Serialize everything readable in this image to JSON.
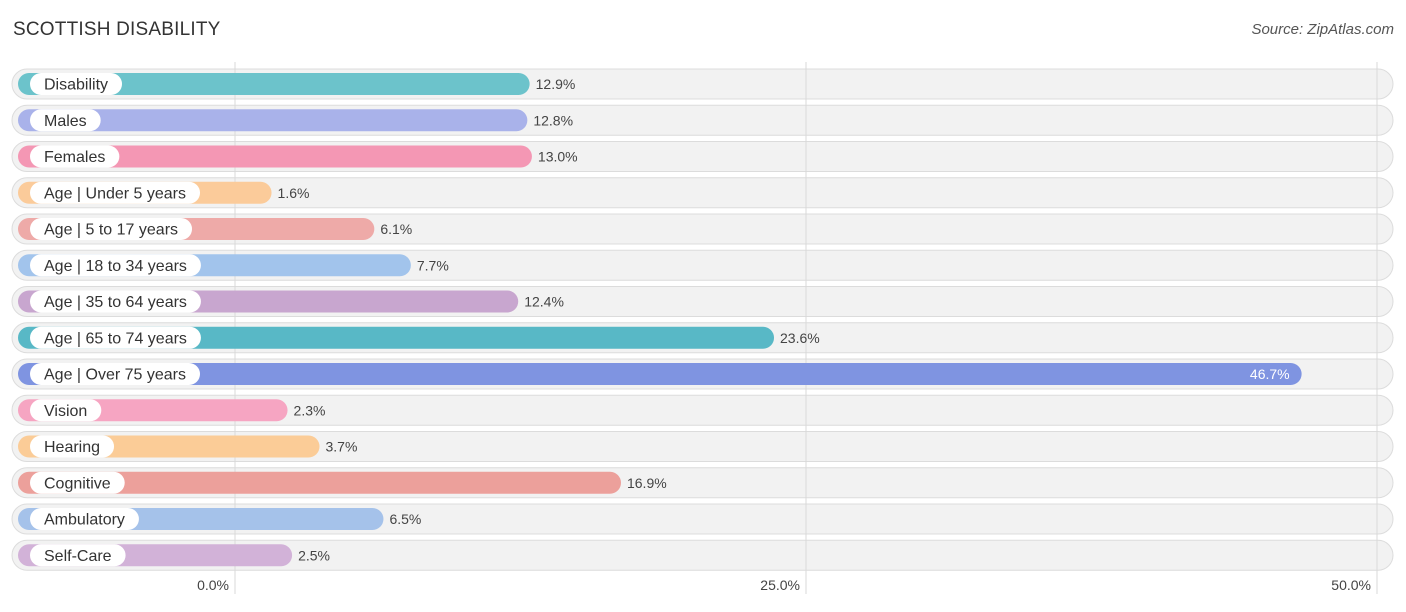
{
  "title": "SCOTTISH DISABILITY",
  "source": "Source: ZipAtlas.com",
  "chart_data": {
    "type": "bar",
    "orientation": "horizontal",
    "categories": [
      "Disability",
      "Males",
      "Females",
      "Age | Under 5 years",
      "Age | 5 to 17 years",
      "Age | 18 to 34 years",
      "Age | 35 to 64 years",
      "Age | 65 to 74 years",
      "Age | Over 75 years",
      "Vision",
      "Hearing",
      "Cognitive",
      "Ambulatory",
      "Self-Care"
    ],
    "values": [
      12.9,
      12.8,
      13.0,
      1.6,
      6.1,
      7.7,
      12.4,
      23.6,
      46.7,
      2.3,
      3.7,
      16.9,
      6.5,
      2.5
    ],
    "value_labels": [
      "12.9%",
      "12.8%",
      "13.0%",
      "1.6%",
      "6.1%",
      "7.7%",
      "12.4%",
      "23.6%",
      "46.7%",
      "2.3%",
      "3.7%",
      "16.9%",
      "6.5%",
      "2.5%"
    ],
    "colors": [
      "#6cc3cb",
      "#a9b2ea",
      "#f497b4",
      "#fbcb9a",
      "#eeaaa8",
      "#a2c4ec",
      "#c8a6cf",
      "#58b8c6",
      "#7f94e1",
      "#f6a5c2",
      "#fbcc97",
      "#eca09b",
      "#a5c2ea",
      "#d2b2d8"
    ],
    "xlim": [
      0,
      50
    ],
    "ticks": [
      0,
      25,
      50
    ],
    "tick_labels": [
      "0.0%",
      "25.0%",
      "50.0%"
    ],
    "grid": true
  }
}
